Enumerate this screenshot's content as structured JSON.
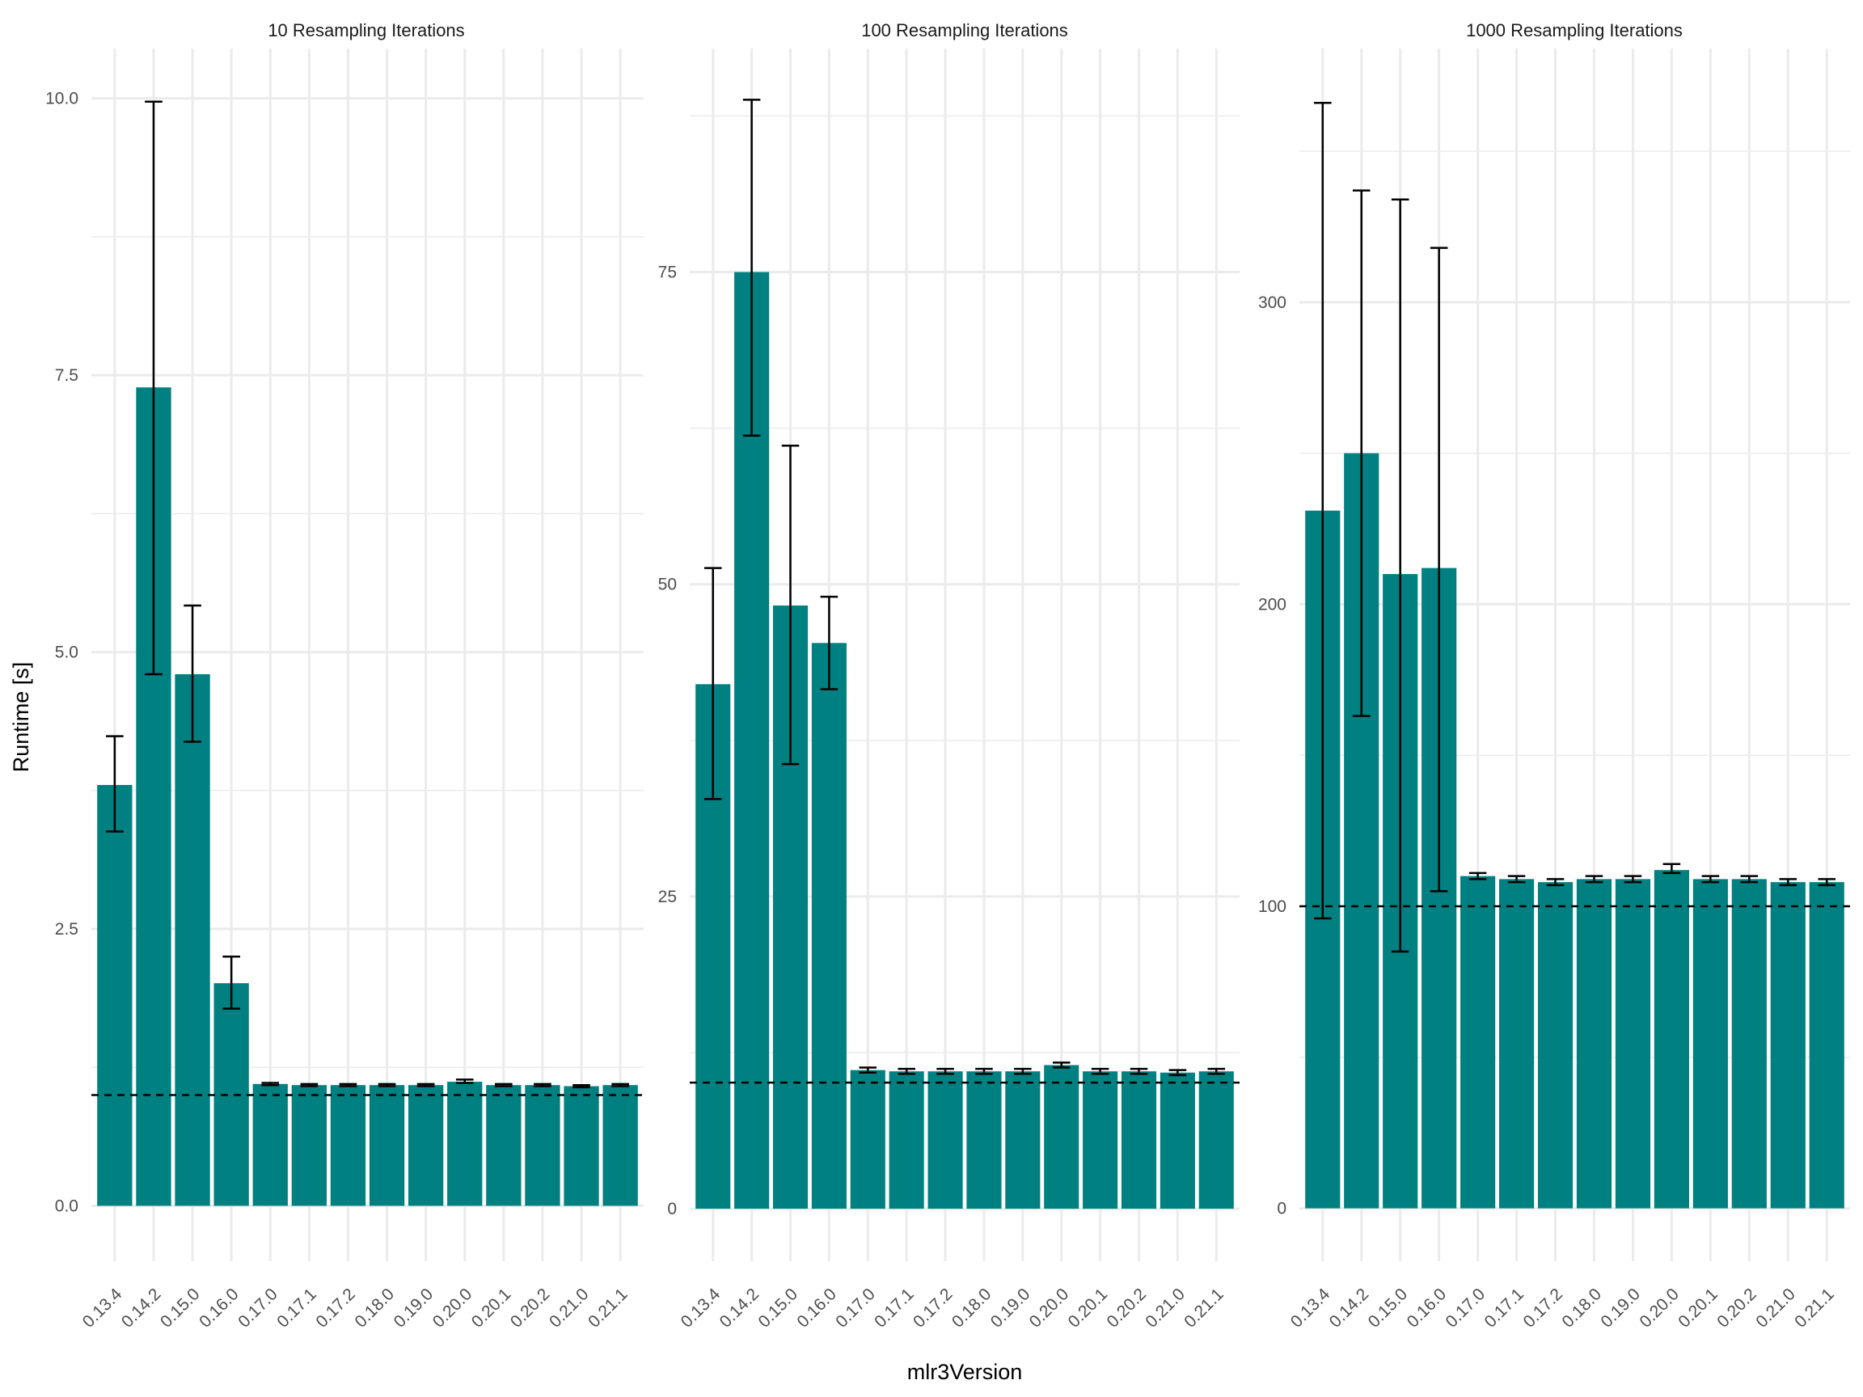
{
  "colors": {
    "bar": "#008080",
    "grid": "#ebebeb",
    "errorbar": "#000000",
    "reference_line": "#000000"
  },
  "shared": {
    "xlabel": "mlr3Version",
    "ylabel": "Runtime [s]"
  },
  "chart_data": [
    {
      "type": "bar",
      "title": "10 Resampling Iterations",
      "categories": [
        "0.13.4",
        "0.14.2",
        "0.15.0",
        "0.16.0",
        "0.17.0",
        "0.17.1",
        "0.17.2",
        "0.18.0",
        "0.19.0",
        "0.20.0",
        "0.20.1",
        "0.20.2",
        "0.21.0",
        "0.21.1"
      ],
      "values": [
        3.8,
        7.39,
        4.8,
        2.01,
        1.1,
        1.09,
        1.09,
        1.09,
        1.09,
        1.12,
        1.09,
        1.09,
        1.08,
        1.09
      ],
      "error_low": [
        3.38,
        4.8,
        4.19,
        1.78,
        1.09,
        1.08,
        1.08,
        1.08,
        1.08,
        1.11,
        1.08,
        1.08,
        1.07,
        1.08
      ],
      "error_high": [
        4.24,
        9.97,
        5.42,
        2.25,
        1.11,
        1.1,
        1.1,
        1.1,
        1.1,
        1.14,
        1.1,
        1.1,
        1.09,
        1.1
      ],
      "reference_line": 1.0,
      "ylim": [
        -0.5,
        10.45
      ],
      "yticks": [
        0,
        2.5,
        5,
        7.5,
        10
      ],
      "ytick_labels": [
        "0.0",
        "2.5",
        "5.0",
        "7.5",
        "10.0"
      ],
      "grid": true,
      "xlabel": "",
      "ylabel": "Runtime [s]"
    },
    {
      "type": "bar",
      "title": "100 Resampling Iterations",
      "categories": [
        "0.13.4",
        "0.14.2",
        "0.15.0",
        "0.16.0",
        "0.17.0",
        "0.17.1",
        "0.17.2",
        "0.18.0",
        "0.19.0",
        "0.20.0",
        "0.20.1",
        "0.20.2",
        "0.21.0",
        "0.21.1"
      ],
      "values": [
        42,
        75,
        48.3,
        45.3,
        11.1,
        11.0,
        11.0,
        11.0,
        11.0,
        11.5,
        11.0,
        11.0,
        10.9,
        11.0
      ],
      "error_low": [
        32.8,
        61.9,
        35.6,
        41.6,
        10.9,
        10.8,
        10.8,
        10.8,
        10.8,
        11.3,
        10.8,
        10.8,
        10.7,
        10.8
      ],
      "error_high": [
        51.3,
        88.8,
        61.1,
        49.0,
        11.3,
        11.2,
        11.2,
        11.2,
        11.2,
        11.7,
        11.2,
        11.2,
        11.1,
        11.2
      ],
      "reference_line": 10.1,
      "ylim": [
        -4.2,
        92.9
      ],
      "yticks": [
        0,
        25,
        50,
        75
      ],
      "ytick_labels": [
        "0",
        "25",
        "50",
        "75"
      ],
      "grid": true,
      "xlabel": "mlr3Version",
      "ylabel": ""
    },
    {
      "type": "bar",
      "title": "1000 Resampling Iterations",
      "categories": [
        "0.13.4",
        "0.14.2",
        "0.15.0",
        "0.16.0",
        "0.17.0",
        "0.17.1",
        "0.17.2",
        "0.18.0",
        "0.19.0",
        "0.20.0",
        "0.20.1",
        "0.20.2",
        "0.21.0",
        "0.21.1"
      ],
      "values": [
        231,
        250,
        210,
        212,
        110,
        109,
        108,
        109,
        109,
        112,
        109,
        109,
        108,
        108
      ],
      "error_low": [
        96,
        163,
        85,
        105,
        109,
        108,
        107,
        108,
        108,
        111,
        108,
        108,
        107,
        107
      ],
      "error_high": [
        366,
        337,
        334,
        318,
        111,
        110,
        109,
        110,
        110,
        114,
        110,
        110,
        109,
        109
      ],
      "reference_line": 100,
      "ylim": [
        -17.5,
        384
      ],
      "yticks": [
        0,
        100,
        200,
        300
      ],
      "ytick_labels": [
        "0",
        "100",
        "200",
        "300"
      ],
      "grid": true,
      "xlabel": "",
      "ylabel": ""
    }
  ]
}
